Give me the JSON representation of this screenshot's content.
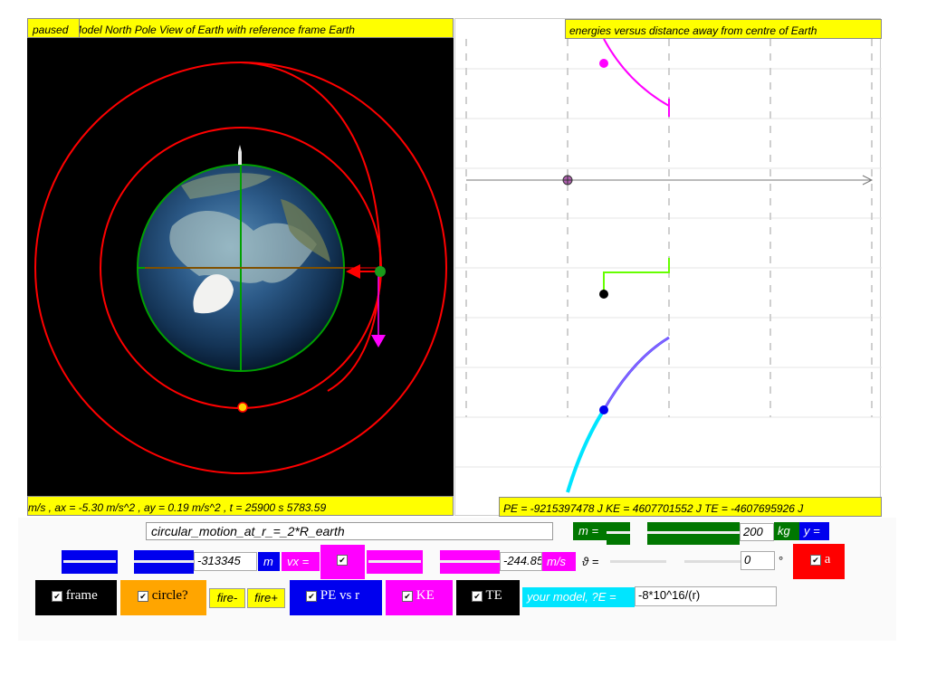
{
  "left_panel": {
    "status": "paused",
    "title": "Model North Pole View of Earth with reference frame Earth",
    "bottom_readout": "5783.59 m/s , ax = -5.30 m/s^2 , ay = 0.19 m/s^2 , t = 25900 s"
  },
  "right_panel": {
    "title": "energies versus distance away from centre of Earth",
    "bottom_readout": "PE = -9215397478 J KE = 4607701552 J TE = -4607695926 J"
  },
  "controls": {
    "model_select": "circular_motion_at_r_=_2*R_earth",
    "mass_label": "m =",
    "mass_value": "200",
    "mass_unit": "kg",
    "y_label": "y =",
    "position_value": "-313345",
    "position_unit": "m",
    "vx_label": "vx =",
    "velocity_value": "-244.85",
    "velocity_unit": "m/s",
    "theta_label": "ϑ =",
    "theta_value": "0",
    "theta_unit": "°",
    "a_label": "a",
    "frame_label": "frame",
    "circle_label": "circle?",
    "fire_minus": "fire-",
    "fire_plus": "fire+",
    "pe_label": "PE vs r",
    "ke_label": "KE",
    "te_label": "TE",
    "your_model_label": "your model, ?E =",
    "your_model_value": "-8*10^16/(r)"
  },
  "checkbox_mark": "✔",
  "colors": {
    "yellow": "#ffff00",
    "orbit": "#ff0000",
    "pe": "#00e5ff",
    "ke": "#ff00ff",
    "te": "#66ff00",
    "green_ctrl": "#007700",
    "blue_ctrl": "#0000ee",
    "magenta_ctrl": "#ff00ff"
  }
}
